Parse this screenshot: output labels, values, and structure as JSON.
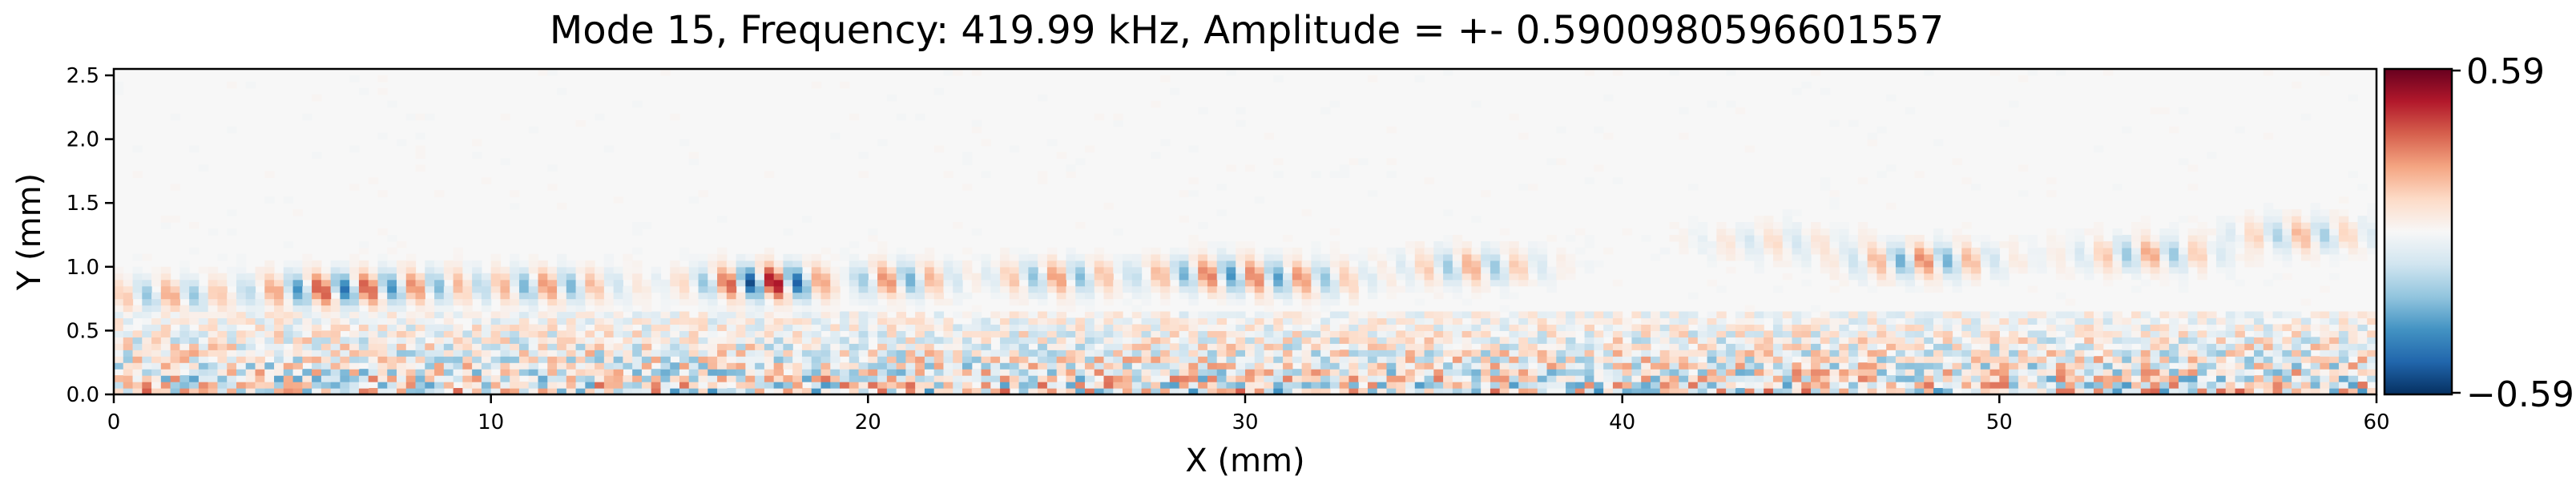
{
  "chart_data": {
    "type": "heatmap",
    "title": "Mode 15, Frequency: 419.99 kHz, Amplitude = +- 0.5900980596601557",
    "xlabel": "X (mm)",
    "ylabel": "Y (mm)",
    "xlim": [
      0,
      60
    ],
    "ylim": [
      0,
      2.55
    ],
    "x_ticks": [
      0,
      10,
      20,
      30,
      40,
      50,
      60
    ],
    "y_ticks": [
      0.0,
      0.5,
      1.0,
      1.5,
      2.0,
      2.5
    ],
    "x_tick_labels": [
      "0",
      "10",
      "20",
      "30",
      "40",
      "50",
      "60"
    ],
    "y_tick_labels": [
      "0.0",
      "0.5",
      "1.0",
      "1.5",
      "2.0",
      "2.5"
    ],
    "colormap": "RdBu_r",
    "vmin": -0.5900980596601557,
    "vmax": 0.5900980596601557,
    "colorbar": {
      "max_label": "0.59",
      "min_label": "−0.59",
      "colors": [
        "#053061",
        "#2166ac",
        "#4393c3",
        "#92c5de",
        "#d1e5f0",
        "#f7f7f7",
        "#fddbc7",
        "#f4a582",
        "#d6604d",
        "#b2182b",
        "#67001f"
      ]
    },
    "grid": false,
    "wave_packets": [
      {
        "x": 1.5,
        "y": 0.78,
        "amp": 0.25
      },
      {
        "x": 5.5,
        "y": 0.82,
        "amp": 0.38
      },
      {
        "x": 8.0,
        "y": 0.85,
        "amp": 0.25
      },
      {
        "x": 11.5,
        "y": 0.85,
        "amp": 0.3
      },
      {
        "x": 17.5,
        "y": 0.88,
        "amp": 0.59
      },
      {
        "x": 20.5,
        "y": 0.9,
        "amp": 0.35
      },
      {
        "x": 25.0,
        "y": 0.92,
        "amp": 0.28
      },
      {
        "x": 29.0,
        "y": 0.95,
        "amp": 0.3
      },
      {
        "x": 31.5,
        "y": 0.9,
        "amp": 0.25
      },
      {
        "x": 36.0,
        "y": 1.0,
        "amp": 0.25
      },
      {
        "x": 44.0,
        "y": 1.2,
        "amp": 0.12
      },
      {
        "x": 48.0,
        "y": 1.05,
        "amp": 0.32
      },
      {
        "x": 54.0,
        "y": 1.1,
        "amp": 0.25
      },
      {
        "x": 58.0,
        "y": 1.25,
        "amp": 0.22
      }
    ],
    "noise_band_top_y": 0.65
  }
}
